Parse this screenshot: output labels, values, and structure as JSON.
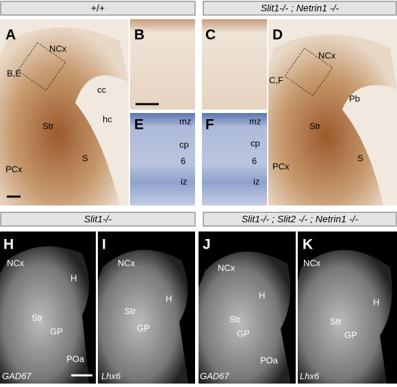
{
  "headers": {
    "top_left": "+/+",
    "top_right": "Slit1-/- ; Netrin1 -/-",
    "bottom_left": "Slit1-/-",
    "bottom_right": "Slit1-/- ; Slit2 -/- ; Netrin1 -/-"
  },
  "panels": [
    {
      "letter": "A",
      "labels": [
        "NCx",
        "B,E",
        "cc",
        "hc",
        "Str",
        "S",
        "PCx"
      ]
    },
    {
      "letter": "B",
      "labels": []
    },
    {
      "letter": "C",
      "labels": []
    },
    {
      "letter": "D",
      "labels": [
        "C,F",
        "NCx",
        "Pb",
        "Str",
        "S",
        "PCx"
      ]
    },
    {
      "letter": "E",
      "labels": [
        "mz",
        "cp",
        "6",
        "iz"
      ]
    },
    {
      "letter": "F",
      "labels": [
        "mz",
        "cp",
        "6",
        "iz"
      ]
    },
    {
      "letter": "H",
      "labels": [
        "NCx",
        "H",
        "Str",
        "GP",
        "POa",
        "GAD67"
      ]
    },
    {
      "letter": "I",
      "labels": [
        "NCx",
        "H",
        "Str",
        "GP",
        "Lhx6"
      ]
    },
    {
      "letter": "J",
      "labels": [
        "NCx",
        "H",
        "Str",
        "GP",
        "POa",
        "GAD67"
      ]
    },
    {
      "letter": "K",
      "labels": [
        "NCx",
        "H",
        "Str",
        "GP",
        "Lhx6"
      ]
    }
  ]
}
